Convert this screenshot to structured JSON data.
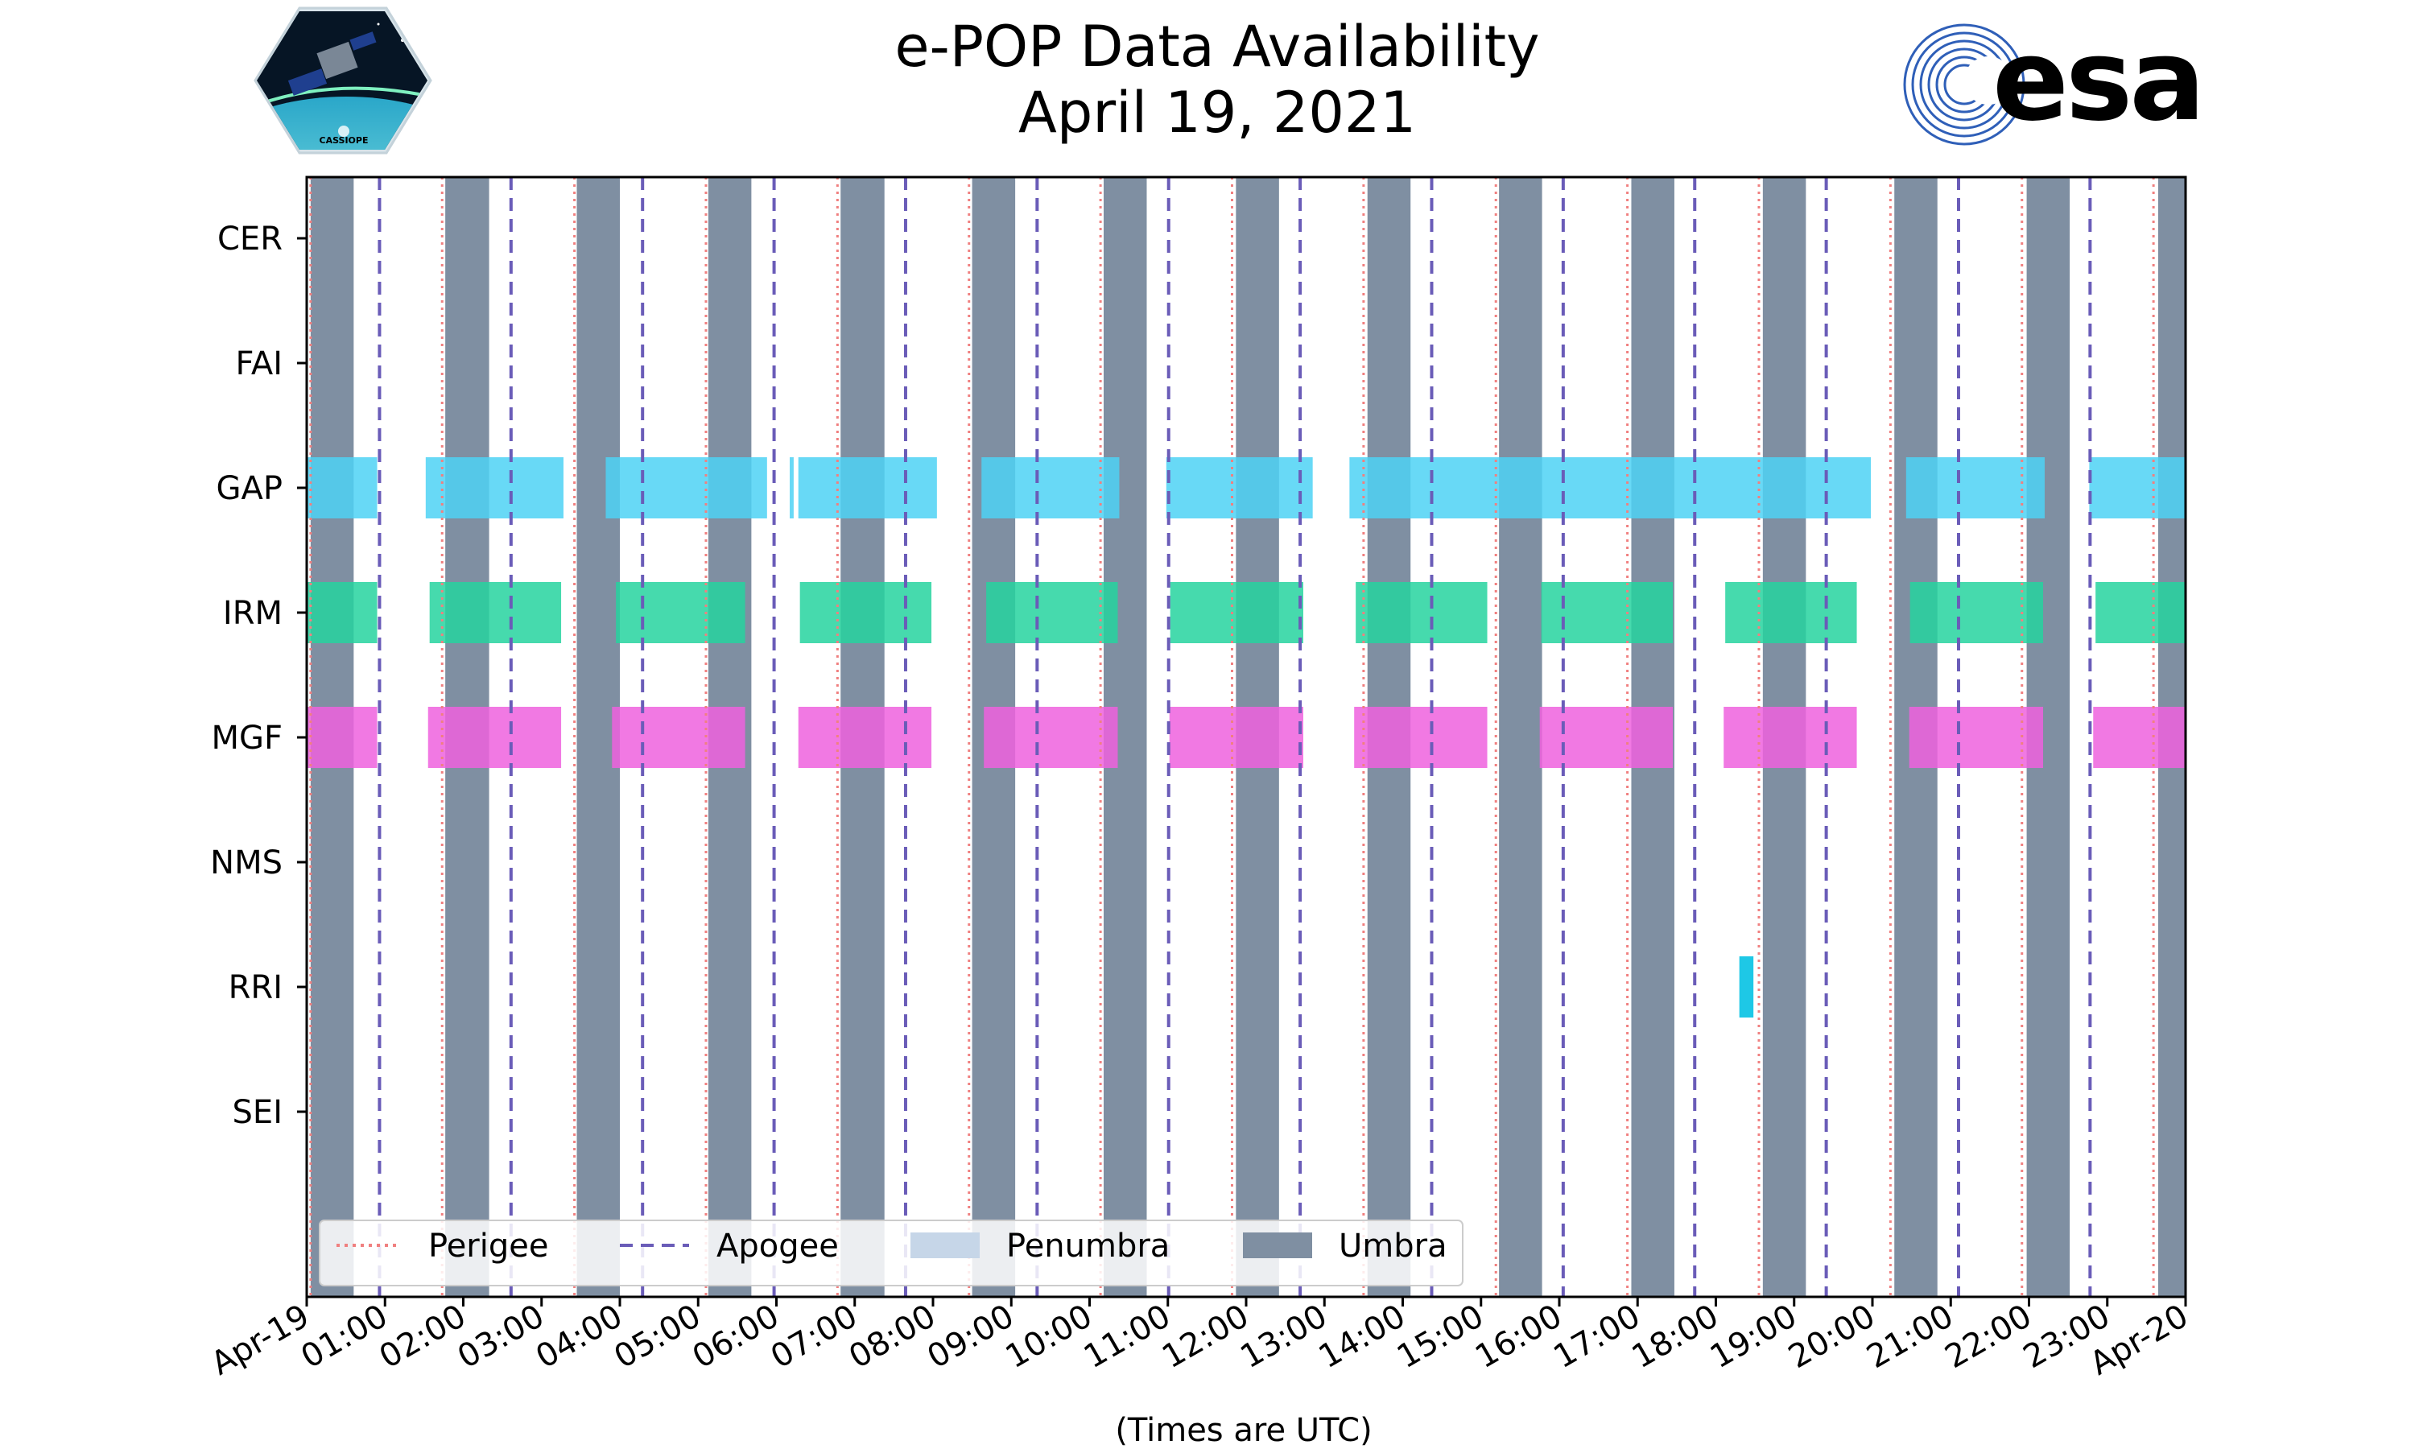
{
  "chart_data": {
    "type": "timeline",
    "title": "e-POP Data Availability",
    "subtitle": "April 19, 2021",
    "xlabel": "(Times are UTC)",
    "ylabel": "",
    "xlim_hours": [
      0,
      24
    ],
    "tick_labels": [
      "Apr-19",
      "01:00",
      "02:00",
      "03:00",
      "04:00",
      "05:00",
      "06:00",
      "07:00",
      "08:00",
      "09:00",
      "10:00",
      "11:00",
      "12:00",
      "13:00",
      "14:00",
      "15:00",
      "16:00",
      "17:00",
      "18:00",
      "19:00",
      "20:00",
      "21:00",
      "22:00",
      "23:00",
      "Apr-20"
    ],
    "instruments": [
      "CER",
      "FAI",
      "GAP",
      "IRM",
      "MGF",
      "NMS",
      "RRI",
      "SEI"
    ],
    "colors": {
      "GAP": "#4dd2f5",
      "IRM": "#26d39f",
      "MGF": "#ee62de",
      "RRI": "#1ec8e6",
      "umbra": "#7f8fa2",
      "penumbra": "#c6d6e8",
      "perigee": "#f08080",
      "apogee": "#6a5cb8",
      "esa": "#003399"
    },
    "series": [
      {
        "name": "GAP",
        "intervals": [
          [
            0.0,
            0.9
          ],
          [
            1.52,
            3.28
          ],
          [
            3.82,
            5.88
          ],
          [
            6.17,
            6.22
          ],
          [
            6.28,
            8.05
          ],
          [
            8.62,
            10.38
          ],
          [
            10.98,
            12.85
          ],
          [
            13.32,
            19.98
          ],
          [
            20.43,
            22.2
          ],
          [
            22.77,
            24.0
          ]
        ]
      },
      {
        "name": "IRM",
        "intervals": [
          [
            0.0,
            0.9
          ],
          [
            1.57,
            3.25
          ],
          [
            3.95,
            5.6
          ],
          [
            6.3,
            7.98
          ],
          [
            8.68,
            10.36
          ],
          [
            11.03,
            12.73
          ],
          [
            13.4,
            15.08
          ],
          [
            15.77,
            17.45
          ],
          [
            18.12,
            19.8
          ],
          [
            20.48,
            22.18
          ],
          [
            22.85,
            24.0
          ]
        ]
      },
      {
        "name": "MGF",
        "intervals": [
          [
            0.0,
            0.9
          ],
          [
            1.55,
            3.25
          ],
          [
            3.9,
            5.6
          ],
          [
            6.28,
            7.98
          ],
          [
            8.65,
            10.36
          ],
          [
            11.02,
            12.73
          ],
          [
            13.38,
            15.08
          ],
          [
            15.75,
            17.45
          ],
          [
            18.1,
            19.8
          ],
          [
            20.47,
            22.18
          ],
          [
            22.82,
            24.0
          ]
        ]
      },
      {
        "name": "RRI",
        "intervals": [
          [
            18.3,
            18.48
          ]
        ]
      }
    ],
    "umbra": [
      [
        0.05,
        0.6
      ],
      [
        1.77,
        2.33
      ],
      [
        3.45,
        4.0
      ],
      [
        5.13,
        5.68
      ],
      [
        6.82,
        7.38
      ],
      [
        8.5,
        9.05
      ],
      [
        10.18,
        10.73
      ],
      [
        11.87,
        12.42
      ],
      [
        13.55,
        14.1
      ],
      [
        15.23,
        15.78
      ],
      [
        16.92,
        17.47
      ],
      [
        18.6,
        19.15
      ],
      [
        20.28,
        20.83
      ],
      [
        21.97,
        22.52
      ],
      [
        23.65,
        24.0
      ]
    ],
    "perigee": [
      0.05,
      1.73,
      3.42,
      5.1,
      6.78,
      8.46,
      10.14,
      11.82,
      13.5,
      15.19,
      16.87,
      18.55,
      20.23,
      21.91,
      23.59
    ],
    "apogee": [
      0.93,
      2.61,
      4.29,
      5.97,
      7.65,
      9.33,
      11.01,
      12.69,
      14.37,
      16.05,
      17.73,
      19.41,
      21.1,
      22.78
    ],
    "legend": {
      "position": "lower-left",
      "entries": [
        {
          "label": "Perigee",
          "style": "dotted"
        },
        {
          "label": "Apogee",
          "style": "dashed"
        },
        {
          "label": "Penumbra",
          "style": "patch"
        },
        {
          "label": "Umbra",
          "style": "patch"
        }
      ]
    }
  },
  "logos": {
    "left": {
      "name": "CASSIOPE",
      "text": "CASSIOPE"
    },
    "right": {
      "name": "esa",
      "text": "esa"
    }
  }
}
